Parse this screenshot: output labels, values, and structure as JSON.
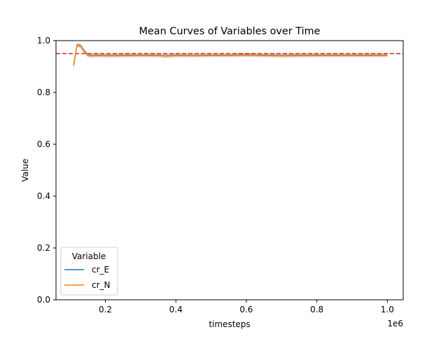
{
  "chart_data": {
    "type": "line",
    "title": "Mean Curves of Variables over Time",
    "xlabel": "timesteps",
    "ylabel": "Value",
    "x_offset_label": "1e6",
    "x_multiplier": 1000000,
    "xlim": [
      60000,
      1045000
    ],
    "ylim": [
      0.0,
      1.0
    ],
    "x_ticks": [
      200000,
      400000,
      600000,
      800000,
      1000000
    ],
    "x_tick_labels": [
      "0.2",
      "0.4",
      "0.6",
      "0.8",
      "1.0"
    ],
    "y_ticks": [
      0.0,
      0.2,
      0.4,
      0.6,
      0.8,
      1.0
    ],
    "y_tick_labels": [
      "0.0",
      "0.2",
      "0.4",
      "0.6",
      "0.8",
      "1.0"
    ],
    "grid": false,
    "reference_line": {
      "y": 0.95,
      "color": "#d62728",
      "style": "dashed"
    },
    "legend": {
      "title": "Variable",
      "placement": "lower-left"
    },
    "x": [
      110000,
      120000,
      130000,
      140000,
      150000,
      160000,
      180000,
      200000,
      250000,
      300000,
      350000,
      370000,
      400000,
      450000,
      500000,
      550000,
      600000,
      650000,
      700000,
      750000,
      800000,
      850000,
      900000,
      950000,
      1000000
    ],
    "series": [
      {
        "name": "cr_E",
        "color": "#1f77b4",
        "values": [
          0.905,
          0.985,
          0.98,
          0.96,
          0.945,
          0.943,
          0.944,
          0.943,
          0.944,
          0.944,
          0.944,
          0.942,
          0.944,
          0.943,
          0.944,
          0.944,
          0.945,
          0.944,
          0.943,
          0.944,
          0.944,
          0.944,
          0.944,
          0.944,
          0.944
        ],
        "band_lower": [
          0.885,
          0.975,
          0.972,
          0.953,
          0.938,
          0.936,
          0.937,
          0.936,
          0.937,
          0.938,
          0.937,
          0.934,
          0.937,
          0.937,
          0.938,
          0.938,
          0.939,
          0.938,
          0.936,
          0.937,
          0.938,
          0.938,
          0.938,
          0.938,
          0.938
        ],
        "band_upper": [
          0.92,
          0.99,
          0.987,
          0.967,
          0.952,
          0.95,
          0.951,
          0.95,
          0.951,
          0.951,
          0.951,
          0.949,
          0.951,
          0.95,
          0.951,
          0.951,
          0.952,
          0.951,
          0.95,
          0.951,
          0.951,
          0.951,
          0.951,
          0.951,
          0.951
        ]
      },
      {
        "name": "cr_N",
        "color": "#ff7f0e",
        "values": [
          0.905,
          0.984,
          0.979,
          0.958,
          0.944,
          0.942,
          0.943,
          0.942,
          0.943,
          0.943,
          0.943,
          0.941,
          0.943,
          0.942,
          0.943,
          0.943,
          0.944,
          0.943,
          0.942,
          0.943,
          0.943,
          0.943,
          0.943,
          0.943,
          0.943
        ],
        "band_lower": [
          0.885,
          0.975,
          0.97,
          0.95,
          0.936,
          0.934,
          0.935,
          0.934,
          0.935,
          0.936,
          0.935,
          0.933,
          0.935,
          0.935,
          0.936,
          0.936,
          0.937,
          0.936,
          0.934,
          0.935,
          0.936,
          0.936,
          0.936,
          0.936,
          0.936
        ],
        "band_upper": [
          0.92,
          0.99,
          0.986,
          0.966,
          0.951,
          0.949,
          0.95,
          0.949,
          0.95,
          0.95,
          0.95,
          0.948,
          0.95,
          0.949,
          0.95,
          0.95,
          0.951,
          0.95,
          0.949,
          0.95,
          0.95,
          0.95,
          0.95,
          0.95,
          0.95
        ]
      }
    ]
  }
}
